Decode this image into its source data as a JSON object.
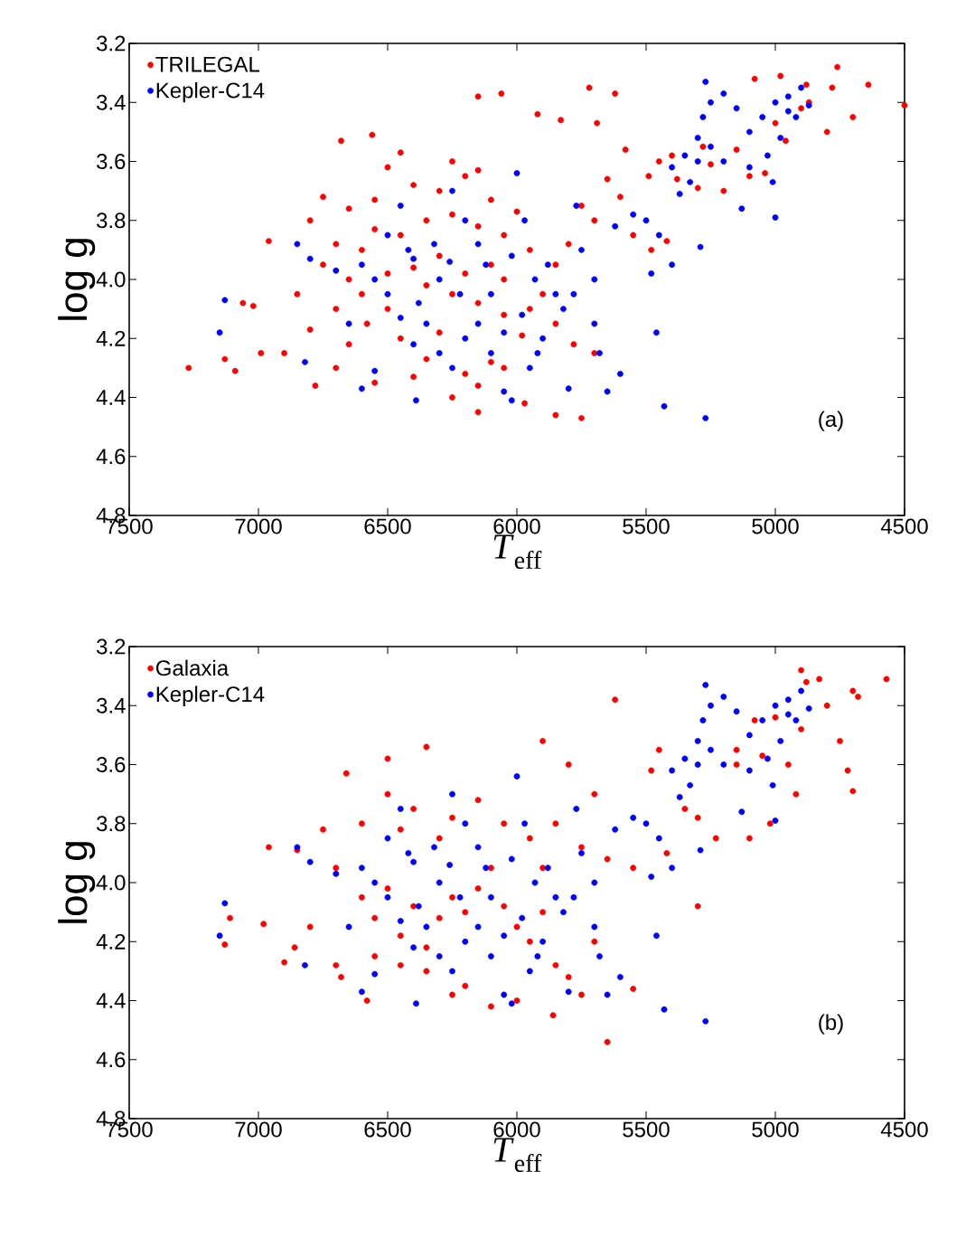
{
  "chart_data": [
    {
      "type": "scatter",
      "xlabel": "*T*$_{eff}$",
      "ylabel": "log g",
      "xlim": [
        7500,
        4500
      ],
      "ylim": [
        4.8,
        3.2
      ],
      "xticks": [
        7500,
        7000,
        6500,
        6000,
        5500,
        5000,
        4500
      ],
      "yticks": [
        3.2,
        3.4,
        3.6,
        3.8,
        {
          "value": 4.0,
          "label": "4.0"
        },
        4.2,
        4.4,
        4.6,
        4.8
      ],
      "marker": "circle",
      "legend": "top left",
      "annotations": [
        "(a)"
      ],
      "series": [
        {
          "name": "TRILEGAL",
          "color": "#ff0000",
          "x": [
            7270,
            7130,
            7090,
            7060,
            7020,
            6960,
            6990,
            6900,
            6850,
            6780,
            6680,
            6560,
            6150,
            6060,
            5920,
            5830,
            5720,
            5620,
            5690,
            5580,
            5490,
            5450,
            5400,
            4760,
            4640,
            4500,
            4780,
            4880,
            4980,
            5080,
            4900,
            4960,
            5040,
            4700,
            4800,
            5150,
            5250,
            5380,
            5300,
            5200,
            5100,
            5280,
            5000,
            4870,
            6150,
            5850,
            5750,
            5970,
            6250,
            6400,
            6550,
            6700,
            6650,
            6580,
            6500,
            6450,
            6350,
            6300,
            6200,
            6100,
            6050,
            5980,
            5900,
            5850,
            5800,
            5750,
            5700,
            5650,
            5600,
            5550,
            5480,
            5420,
            6000,
            6100,
            6200,
            6250,
            6150,
            6300,
            6400,
            6500,
            6450,
            6550,
            6650,
            6750,
            6800,
            6700,
            6750,
            6600,
            6650,
            6550,
            6450,
            6350,
            6250,
            6150,
            6050,
            5950,
            6100,
            6200,
            6300,
            6400,
            6500,
            6600,
            6700,
            6800,
            6350,
            6250,
            6150,
            6050,
            5950,
            5850,
            5780,
            5700,
            6050,
            6150
          ],
          "values": [
            4.3,
            4.27,
            4.31,
            4.08,
            4.09,
            3.87,
            4.25,
            4.25,
            4.05,
            4.36,
            3.53,
            3.51,
            3.38,
            3.37,
            3.44,
            3.46,
            3.35,
            3.37,
            3.47,
            3.56,
            3.65,
            3.6,
            3.58,
            3.28,
            3.34,
            3.41,
            3.35,
            3.34,
            3.31,
            3.32,
            3.42,
            3.53,
            3.64,
            3.45,
            3.5,
            3.56,
            3.61,
            3.66,
            3.69,
            3.7,
            3.65,
            3.55,
            3.47,
            3.4,
            4.45,
            4.46,
            4.47,
            4.42,
            4.4,
            4.33,
            4.35,
            4.3,
            4.22,
            4.15,
            4.1,
            4.2,
            4.27,
            4.18,
            4.32,
            4.28,
            4.12,
            4.19,
            4.05,
            3.95,
            3.88,
            3.75,
            3.8,
            3.66,
            3.72,
            3.85,
            3.9,
            3.87,
            3.77,
            3.73,
            3.65,
            3.6,
            3.63,
            3.7,
            3.68,
            3.62,
            3.57,
            3.73,
            3.76,
            3.72,
            3.8,
            3.88,
            3.95,
            3.9,
            4.0,
            3.83,
            3.85,
            3.8,
            3.78,
            3.82,
            3.85,
            3.9,
            3.95,
            3.98,
            3.92,
            3.96,
            3.98,
            4.05,
            4.1,
            4.17,
            4.02,
            4.05,
            4.08,
            4.0,
            4.1,
            4.15,
            4.22,
            4.25,
            4.3,
            4.36
          ]
        },
        {
          "name": "Kepler-C14",
          "color": "#0000ff",
          "x": [
            7150,
            7130,
            6850,
            6800,
            6820,
            6600,
            6550,
            6500,
            6450,
            6400,
            6380,
            6390,
            6300,
            6250,
            6260,
            6200,
            6150,
            6100,
            6000,
            5970,
            6050,
            6020,
            5950,
            5900,
            5850,
            5800,
            5770,
            5750,
            5700,
            5650,
            5620,
            5600,
            5550,
            5500,
            5480,
            5450,
            5400,
            5430,
            5460,
            5270,
            5350,
            5300,
            5280,
            5250,
            5270,
            5200,
            5150,
            5100,
            5050,
            5000,
            4950,
            4900,
            4920,
            4980,
            5030,
            5010,
            5100,
            5130,
            5200,
            5250,
            5330,
            5290,
            5000,
            4870,
            4950,
            5300,
            5400,
            5370,
            6400,
            6450,
            6500,
            6550,
            6600,
            6700,
            6650,
            6350,
            6300,
            6250,
            6200,
            6150,
            6100,
            6050,
            5980,
            5930,
            5880,
            5820,
            5780,
            5700,
            5680,
            6320,
            6420,
            6220,
            6120,
            6020,
            5920
          ],
          "values": [
            4.18,
            4.07,
            3.88,
            3.93,
            4.28,
            4.37,
            4.31,
            3.85,
            3.75,
            3.93,
            4.08,
            4.41,
            4.0,
            3.7,
            3.94,
            3.8,
            3.88,
            4.05,
            3.64,
            3.8,
            4.38,
            4.41,
            4.3,
            4.2,
            4.05,
            4.37,
            3.75,
            3.9,
            4.0,
            4.38,
            3.82,
            4.32,
            3.78,
            3.8,
            3.98,
            3.85,
            3.95,
            4.43,
            4.18,
            4.47,
            3.58,
            3.52,
            3.45,
            3.4,
            3.33,
            3.37,
            3.42,
            3.5,
            3.45,
            3.4,
            3.38,
            3.35,
            3.45,
            3.52,
            3.58,
            3.67,
            3.62,
            3.76,
            3.6,
            3.55,
            3.67,
            3.89,
            3.79,
            3.41,
            3.43,
            3.6,
            3.62,
            3.71,
            4.22,
            4.13,
            4.05,
            4.0,
            3.95,
            3.97,
            4.15,
            4.15,
            4.25,
            4.3,
            4.2,
            4.15,
            4.25,
            4.18,
            4.12,
            4.0,
            3.95,
            4.1,
            4.05,
            4.15,
            4.25,
            3.88,
            3.9,
            4.05,
            3.95,
            3.92,
            4.25
          ]
        }
      ]
    },
    {
      "type": "scatter",
      "xlabel": "*T*$_{eff}$",
      "ylabel": "log g",
      "xlim": [
        7500,
        4500
      ],
      "ylim": [
        4.8,
        3.2
      ],
      "xticks": [
        7500,
        7000,
        6500,
        6000,
        5500,
        5000,
        4500
      ],
      "yticks": [
        3.2,
        3.4,
        3.6,
        3.8,
        {
          "value": 4.0,
          "label": "4.0"
        },
        4.2,
        4.4,
        4.6,
        4.8
      ],
      "marker": "circle",
      "legend": "top left",
      "annotations": [
        "(b)"
      ],
      "series": [
        {
          "name": "Galaxia",
          "color": "#ff0000",
          "x": [
            7130,
            7110,
            6960,
            6980,
            6900,
            6860,
            6850,
            6800,
            6750,
            6700,
            6680,
            6660,
            6580,
            6500,
            6350,
            6200,
            6100,
            6000,
            5900,
            5860,
            5800,
            5700,
            5650,
            5620,
            5550,
            5480,
            5450,
            5420,
            5350,
            5300,
            5300,
            5230,
            5150,
            5100,
            5080,
            5050,
            5020,
            4950,
            4900,
            4880,
            4830,
            4900,
            4800,
            4750,
            4720,
            4700,
            4680,
            4570,
            4700,
            5000,
            4920,
            5150,
            6600,
            6500,
            6450,
            6400,
            6300,
            6250,
            6150,
            6050,
            5950,
            5900,
            5850,
            5750,
            5650,
            5550,
            6700,
            6600,
            6550,
            6500,
            6450,
            6400,
            6350,
            6300,
            6250,
            6200,
            6150,
            6100,
            6050,
            6000,
            5950,
            5900,
            5850,
            5800,
            5750,
            6250,
            6350,
            6450,
            6550,
            5700
          ],
          "values": [
            4.21,
            4.12,
            3.88,
            4.14,
            4.27,
            4.22,
            3.89,
            4.15,
            3.82,
            4.28,
            4.32,
            3.63,
            4.4,
            3.58,
            3.54,
            4.35,
            4.42,
            4.4,
            3.52,
            4.45,
            3.6,
            3.7,
            4.54,
            3.38,
            4.36,
            3.62,
            3.55,
            3.9,
            3.75,
            3.78,
            4.08,
            3.85,
            3.6,
            3.85,
            3.45,
            3.57,
            3.8,
            3.6,
            3.48,
            3.32,
            3.31,
            3.28,
            3.4,
            3.52,
            3.62,
            3.69,
            3.37,
            3.31,
            3.35,
            3.44,
            3.7,
            3.55,
            3.8,
            3.7,
            3.82,
            3.75,
            3.85,
            3.78,
            3.72,
            3.8,
            3.85,
            3.95,
            3.8,
            3.88,
            3.92,
            3.95,
            3.95,
            4.05,
            4.12,
            4.02,
            4.18,
            4.08,
            4.22,
            4.12,
            4.05,
            4.1,
            4.02,
            3.95,
            4.08,
            4.15,
            4.2,
            4.1,
            4.28,
            4.32,
            4.38,
            4.38,
            4.3,
            4.28,
            4.25,
            4.2
          ]
        },
        {
          "name": "Kepler-C14",
          "color": "#0000ff",
          "x": [
            7150,
            7130,
            6850,
            6800,
            6820,
            6600,
            6550,
            6500,
            6450,
            6400,
            6380,
            6390,
            6300,
            6250,
            6260,
            6200,
            6150,
            6100,
            6000,
            5970,
            6050,
            6020,
            5950,
            5900,
            5850,
            5800,
            5770,
            5750,
            5700,
            5650,
            5620,
            5600,
            5550,
            5500,
            5480,
            5450,
            5400,
            5430,
            5460,
            5270,
            5350,
            5300,
            5280,
            5250,
            5270,
            5200,
            5150,
            5100,
            5050,
            5000,
            4950,
            4900,
            4920,
            4980,
            5030,
            5010,
            5100,
            5130,
            5200,
            5250,
            5330,
            5290,
            5000,
            4870,
            4950,
            5300,
            5400,
            5370,
            6400,
            6450,
            6500,
            6550,
            6600,
            6700,
            6650,
            6350,
            6300,
            6250,
            6200,
            6150,
            6100,
            6050,
            5980,
            5930,
            5880,
            5820,
            5780,
            5700,
            5680,
            6320,
            6420,
            6220,
            6120,
            6020,
            5920
          ],
          "values": [
            4.18,
            4.07,
            3.88,
            3.93,
            4.28,
            4.37,
            4.31,
            3.85,
            3.75,
            3.93,
            4.08,
            4.41,
            4.0,
            3.7,
            3.94,
            3.8,
            3.88,
            4.05,
            3.64,
            3.8,
            4.38,
            4.41,
            4.3,
            4.2,
            4.05,
            4.37,
            3.75,
            3.9,
            4.0,
            4.38,
            3.82,
            4.32,
            3.78,
            3.8,
            3.98,
            3.85,
            3.95,
            4.43,
            4.18,
            4.47,
            3.58,
            3.52,
            3.45,
            3.4,
            3.33,
            3.37,
            3.42,
            3.5,
            3.45,
            3.4,
            3.38,
            3.35,
            3.45,
            3.52,
            3.58,
            3.67,
            3.62,
            3.76,
            3.6,
            3.55,
            3.67,
            3.89,
            3.79,
            3.41,
            3.43,
            3.6,
            3.62,
            3.71,
            4.22,
            4.13,
            4.05,
            4.0,
            3.95,
            3.97,
            4.15,
            4.15,
            4.25,
            4.3,
            4.2,
            4.15,
            4.25,
            4.18,
            4.12,
            4.0,
            3.95,
            4.1,
            4.05,
            4.15,
            4.25,
            3.88,
            3.9,
            4.05,
            3.95,
            3.92,
            4.25
          ]
        }
      ]
    }
  ]
}
